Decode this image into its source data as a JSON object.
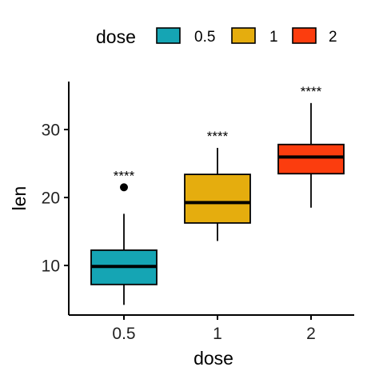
{
  "chart_data": {
    "type": "box",
    "xlabel": "dose",
    "ylabel": "len",
    "ylim": [
      2.5,
      37
    ],
    "y_ticks": [
      10,
      20,
      30
    ],
    "legend": {
      "title": "dose",
      "position": "top",
      "entries": [
        "0.5",
        "1",
        "2"
      ]
    },
    "colors": {
      "0.5": "#15A5B4",
      "1": "#E5AD0E",
      "2": "#FC3D0E",
      "outline": "#000000"
    },
    "categories": [
      "0.5",
      "1",
      "2"
    ],
    "boxes": [
      {
        "category": "0.5",
        "whisker_low": 4.2,
        "q1": 7.2,
        "median": 9.85,
        "q3": 12.25,
        "whisker_high": 17.6,
        "outliers": [
          21.5
        ],
        "significance": "****"
      },
      {
        "category": "1",
        "whisker_low": 13.6,
        "q1": 16.25,
        "median": 19.25,
        "q3": 23.4,
        "whisker_high": 27.3,
        "outliers": [],
        "significance": "****"
      },
      {
        "category": "2",
        "whisker_low": 18.5,
        "q1": 23.5,
        "median": 25.95,
        "q3": 27.8,
        "whisker_high": 33.9,
        "outliers": [],
        "significance": "****"
      }
    ],
    "grid": false
  }
}
